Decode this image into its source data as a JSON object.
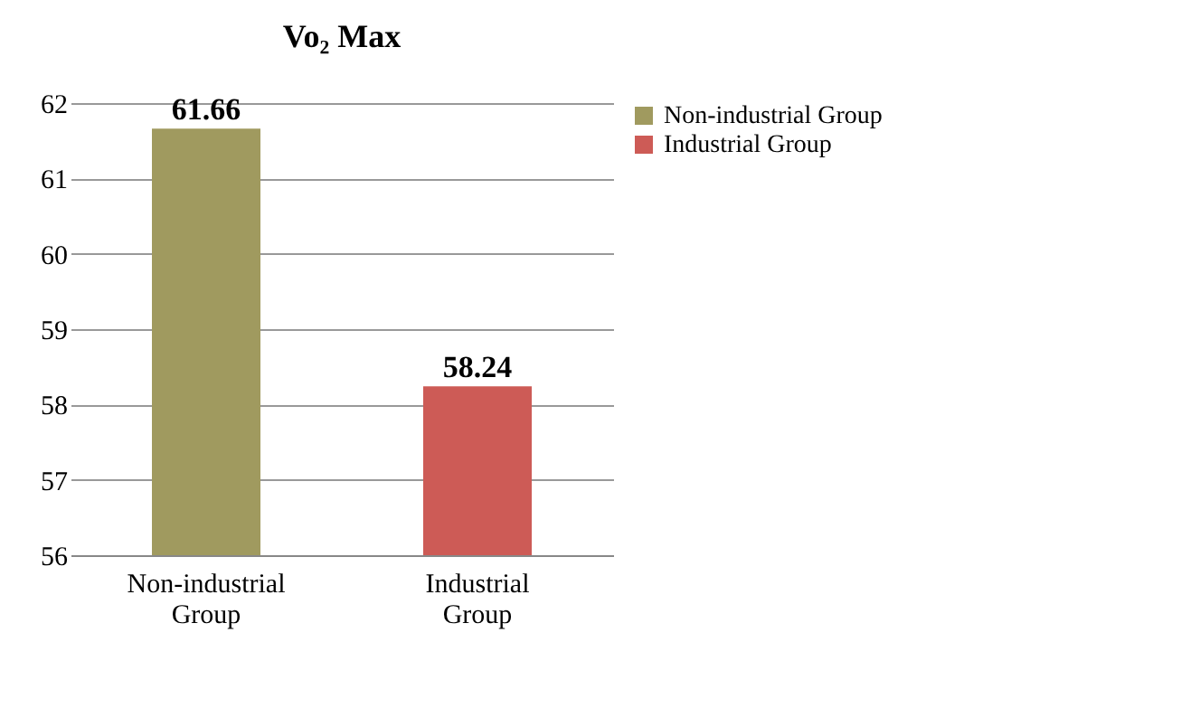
{
  "chart_data": {
    "type": "bar",
    "title": "Vo₂ Max",
    "categories": [
      "Non-industrial Group",
      "Industrial Group"
    ],
    "series": [
      {
        "name": "Non-industrial Group",
        "color": "#a09a5f",
        "values": [
          61.66,
          null
        ]
      },
      {
        "name": "Industrial Group",
        "color": "#cd5b56",
        "values": [
          null,
          58.24
        ]
      }
    ],
    "ylim": [
      56,
      62
    ],
    "yticks": [
      56,
      57,
      58,
      59,
      60,
      61,
      62
    ],
    "grid": "y",
    "legend": "right",
    "data_labels": true
  }
}
